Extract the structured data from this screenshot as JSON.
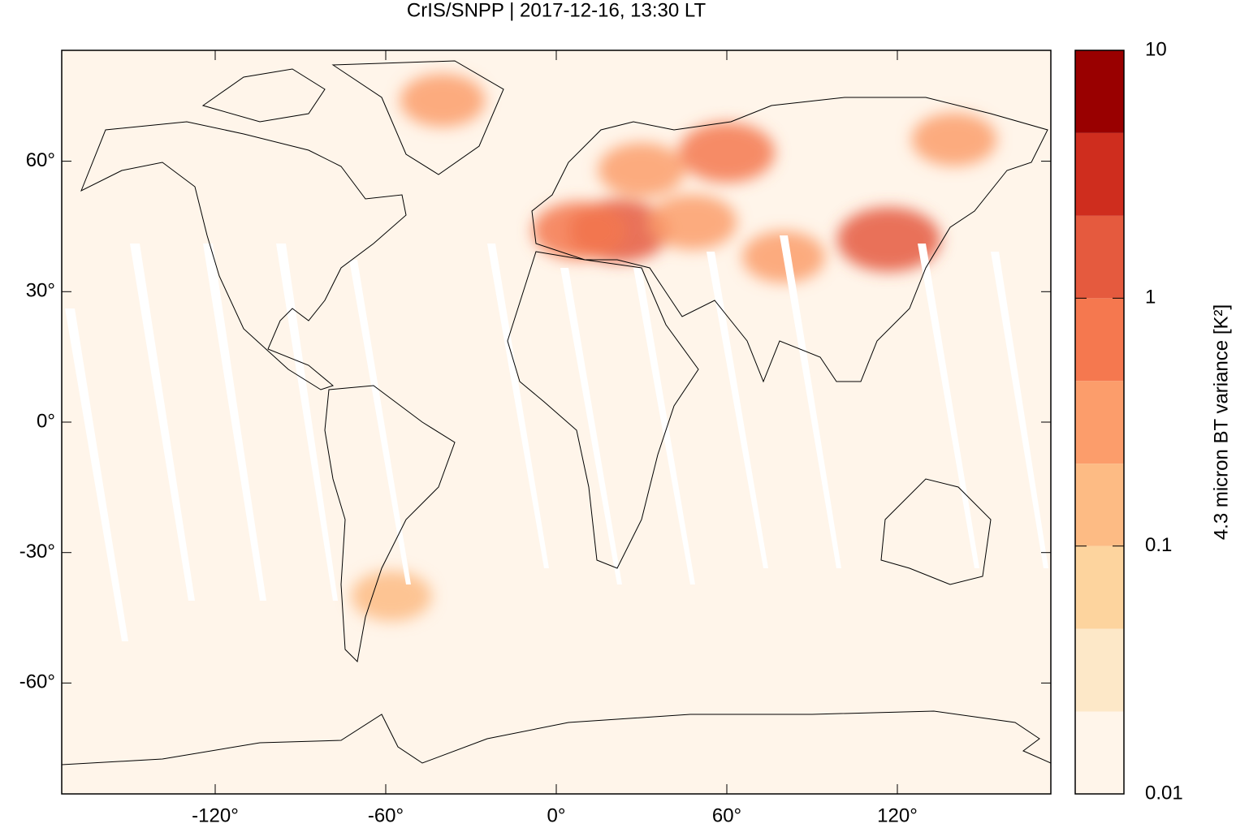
{
  "chart_data": {
    "type": "map",
    "title": "CrIS/SNPP | 2017-12-16, 13:30 LT",
    "xlim": [
      -174,
      174
    ],
    "ylim": [
      -85.5,
      85.5
    ],
    "xticks": [
      {
        "value": -120,
        "label": "-120°"
      },
      {
        "value": -60,
        "label": "-60°"
      },
      {
        "value": 0,
        "label": "0°"
      },
      {
        "value": 60,
        "label": "60°"
      },
      {
        "value": 120,
        "label": "120°"
      }
    ],
    "yticks": [
      {
        "value": -60,
        "label": "-60°"
      },
      {
        "value": -30,
        "label": "-30°"
      },
      {
        "value": 0,
        "label": "0°"
      },
      {
        "value": 30,
        "label": "30°"
      },
      {
        "value": 60,
        "label": "60°"
      }
    ],
    "hotspots": {
      "lon": [
        117,
        22,
        8,
        60,
        -40,
        48,
        140,
        -58,
        80,
        30
      ],
      "lat": [
        42,
        44,
        44,
        62,
        74,
        46,
        65,
        -40,
        38,
        58
      ],
      "values": [
        1.5,
        1.2,
        0.6,
        0.8,
        0.3,
        0.4,
        0.3,
        0.2,
        0.25,
        0.35
      ]
    },
    "colorbar": {
      "label": "4.3 micron BT variance [K²]",
      "log_scale": true,
      "lim": [
        0.01,
        10
      ],
      "ticks": [
        10,
        1,
        0.1,
        0.01
      ],
      "levels": [
        0.01,
        0.0215,
        0.0464,
        0.1,
        0.215,
        0.464,
        1,
        2.15,
        4.64,
        10
      ],
      "colors": [
        "#fff5ea",
        "#fde8c8",
        "#fdd49e",
        "#fdbb84",
        "#fc9d6b",
        "#f5784f",
        "#e55a3e",
        "#cf2d1e",
        "#990000"
      ]
    }
  }
}
